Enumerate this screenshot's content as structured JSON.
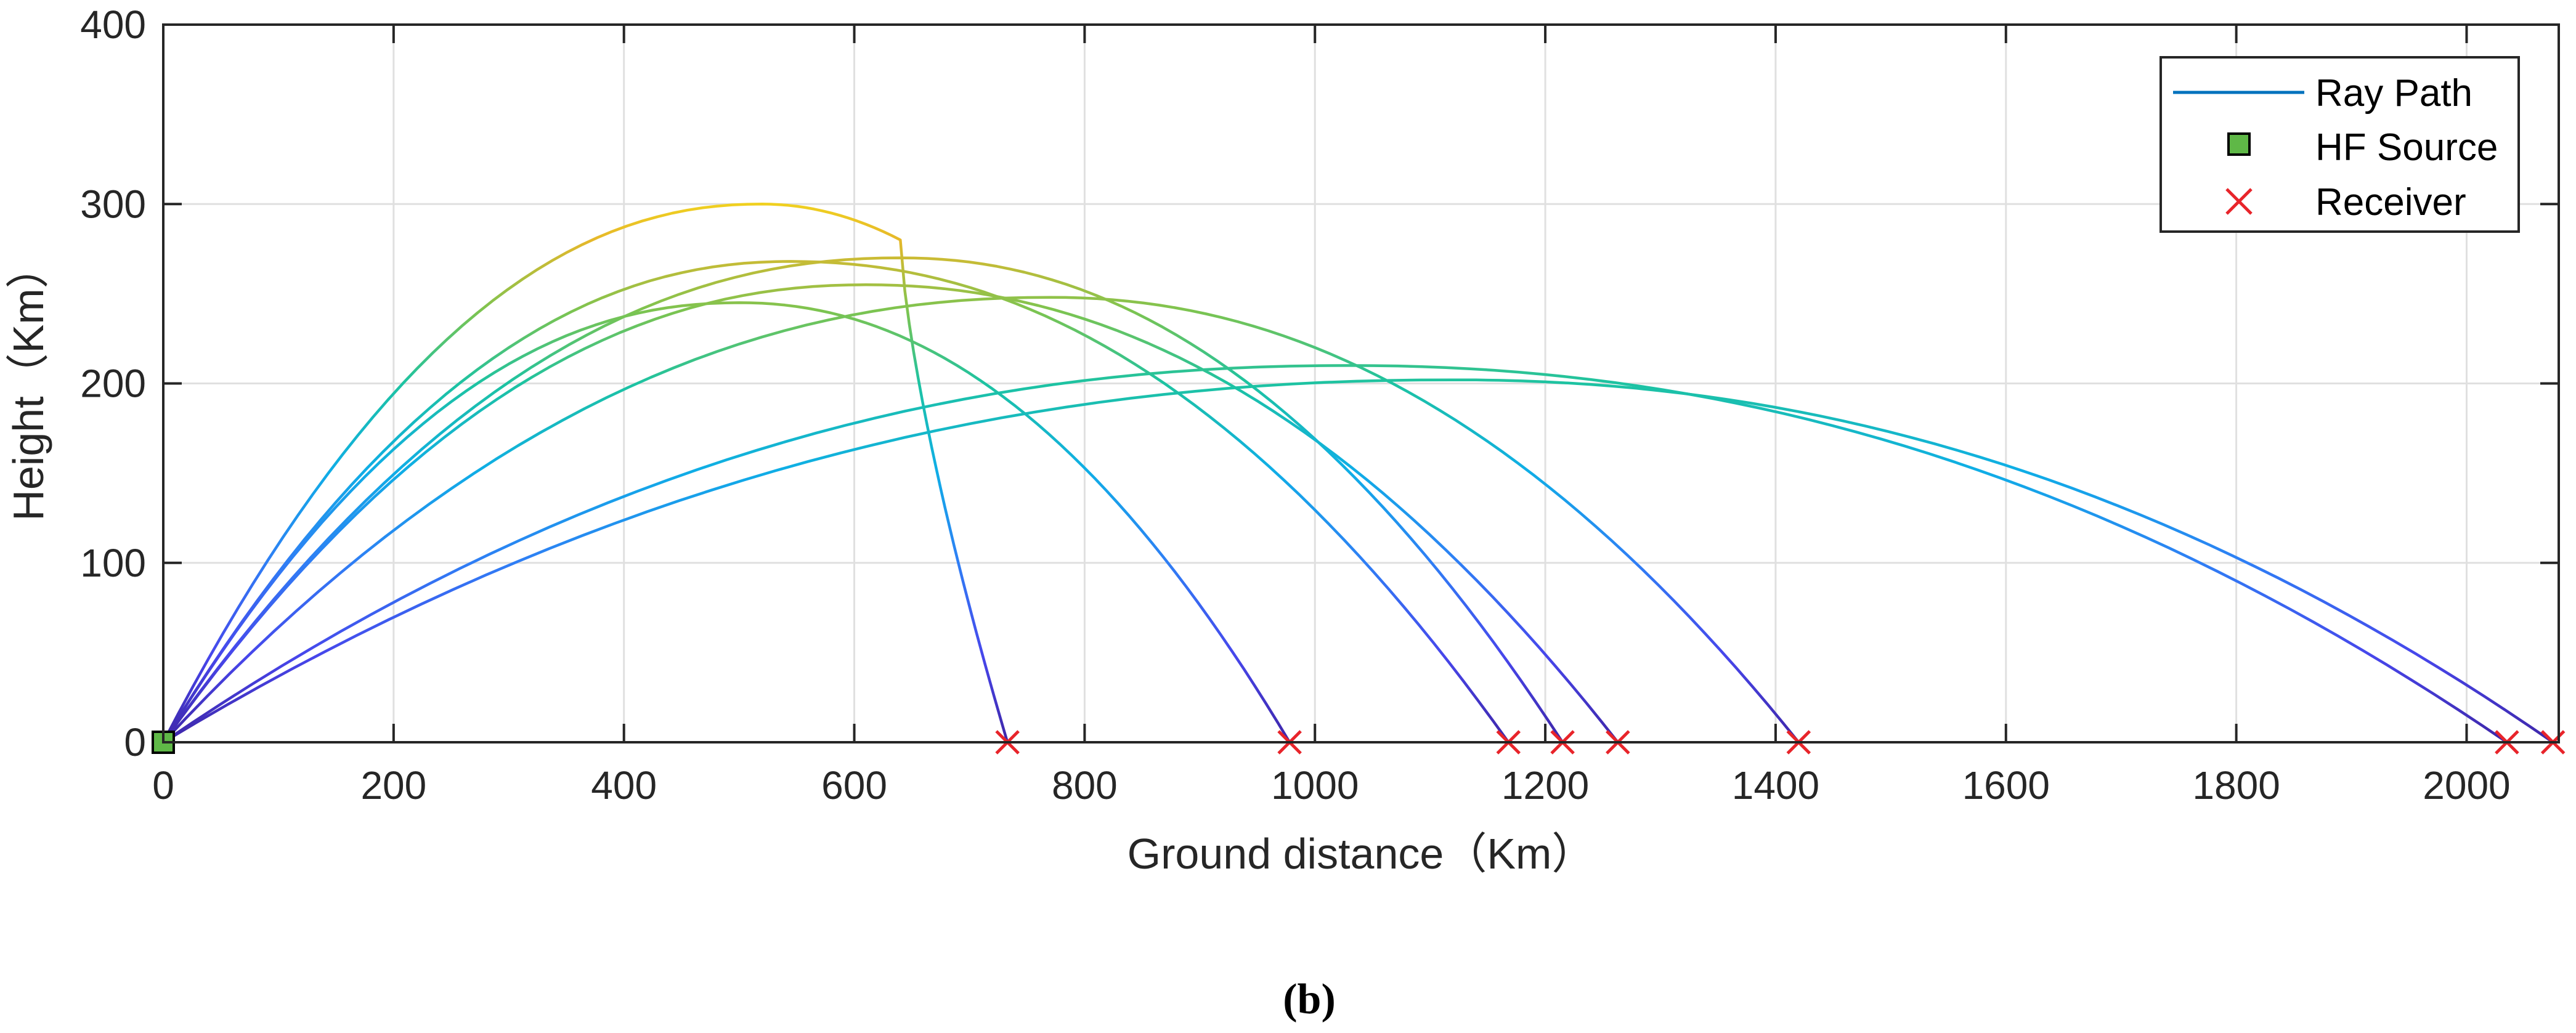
{
  "chart_data": {
    "type": "line",
    "title": "",
    "xlabel": "Ground distance（Km）",
    "ylabel": "Height（Km）",
    "xlim": [
      0,
      2080
    ],
    "ylim": [
      0,
      400
    ],
    "xticks": [
      0,
      200,
      400,
      600,
      800,
      1000,
      1200,
      1400,
      1600,
      1800,
      2000
    ],
    "yticks": [
      0,
      100,
      200,
      300,
      400
    ],
    "grid": true,
    "legend_position": "top-right",
    "legend": [
      "Ray Path",
      "HF Source",
      "Receiver"
    ],
    "caption": "(b)",
    "colors": {
      "ray_path_legend": "#0072BD",
      "source_fill": "#5FB847",
      "receiver": "#E8242A",
      "axis": "#262626",
      "grid": "#E0E0E0"
    },
    "source": {
      "x": 0,
      "y": 0
    },
    "receivers": [
      733,
      978,
      1168,
      1215,
      1263,
      1420,
      2035,
      2075
    ],
    "series": [
      {
        "name": "ray-1",
        "apex": [
          520,
          300
        ],
        "end": 733,
        "steep_descent": true
      },
      {
        "name": "ray-2",
        "apex": [
          500,
          245
        ],
        "end": 978
      },
      {
        "name": "ray-3",
        "apex": [
          545,
          268
        ],
        "end": 1168
      },
      {
        "name": "ray-4",
        "apex": [
          640,
          270
        ],
        "end": 1215
      },
      {
        "name": "ray-5",
        "apex": [
          610,
          255
        ],
        "end": 1263
      },
      {
        "name": "ray-6",
        "apex": [
          770,
          248
        ],
        "end": 1420
      },
      {
        "name": "ray-7",
        "apex": [
          1030,
          210
        ],
        "end": 2035
      },
      {
        "name": "ray-8",
        "apex": [
          1120,
          202
        ],
        "end": 2075
      }
    ]
  }
}
